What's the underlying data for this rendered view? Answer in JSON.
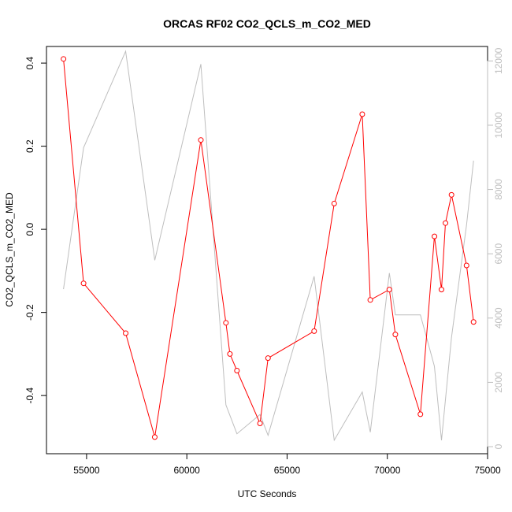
{
  "chart_data": {
    "type": "line",
    "title": "ORCAS RF02 CO2_QCLS_m_CO2_MED",
    "xlabel": "UTC Seconds",
    "ylabel": "CO2_QCLS_m_CO2_MED",
    "xlim": [
      53000,
      75000
    ],
    "ylim": [
      -0.54,
      0.44
    ],
    "y2lim": [
      -220,
      12450
    ],
    "x_ticks": [
      55000,
      60000,
      65000,
      70000,
      75000
    ],
    "y_ticks": [
      -0.4,
      -0.2,
      0.0,
      0.2,
      0.4
    ],
    "y_tick_labels": [
      "-0.4",
      "-0.2",
      "0.0",
      "0.2",
      "0.4"
    ],
    "y2_ticks": [
      0,
      2000,
      4000,
      6000,
      8000,
      10000,
      12000
    ],
    "grid": false,
    "series": [
      {
        "axis": "left",
        "color": "#ff0000",
        "style": "line+points",
        "x": [
          53850,
          54850,
          56950,
          58400,
          60700,
          61950,
          62150,
          62500,
          63650,
          64050,
          66350,
          67350,
          68750,
          69150,
          70100,
          70400,
          71650,
          72350,
          72700,
          72900,
          73200,
          73950,
          74300
        ],
        "y": [
          0.41,
          -0.13,
          -0.25,
          -0.5,
          0.215,
          -0.225,
          -0.3,
          -0.34,
          -0.467,
          -0.31,
          -0.245,
          0.062,
          0.277,
          -0.17,
          -0.145,
          -0.253,
          -0.445,
          -0.017,
          -0.145,
          0.015,
          0.083,
          -0.087,
          -0.223
        ]
      },
      {
        "axis": "right",
        "color": "#bebebe",
        "style": "line",
        "x": [
          53850,
          54850,
          56950,
          58400,
          60700,
          61950,
          62500,
          63650,
          64050,
          66350,
          67350,
          68750,
          69150,
          70100,
          70400,
          71650,
          72350,
          72700,
          73200,
          73950,
          74300
        ],
        "y": [
          4900,
          9300,
          12300,
          5800,
          11900,
          1300,
          400,
          1000,
          350,
          5300,
          200,
          1700,
          450,
          5400,
          4100,
          4100,
          2500,
          200,
          3400,
          6900,
          8900
        ]
      }
    ]
  }
}
